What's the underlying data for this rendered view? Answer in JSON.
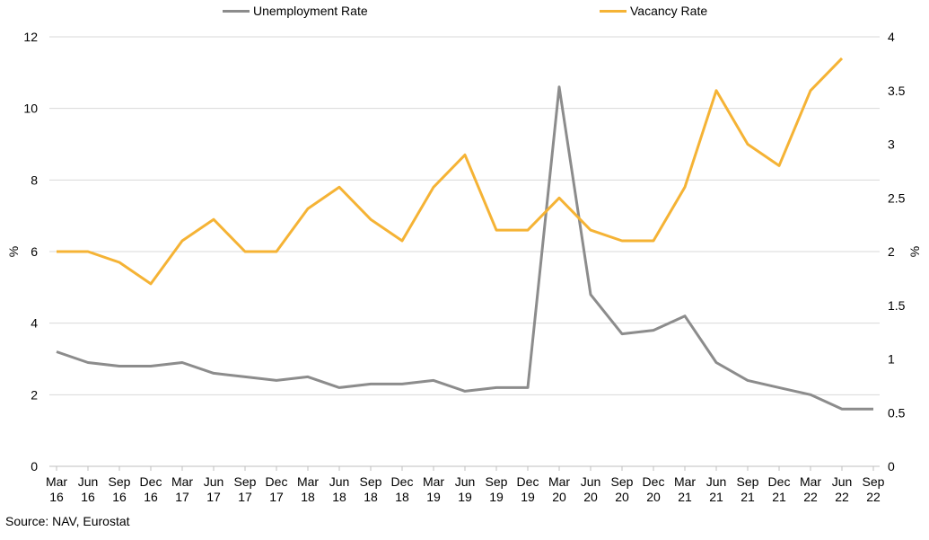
{
  "chart_data": {
    "type": "line",
    "title": "",
    "categories": [
      "Mar 16",
      "Jun 16",
      "Sep 16",
      "Dec 16",
      "Mar 17",
      "Jun 17",
      "Sep 17",
      "Dec 17",
      "Mar 18",
      "Jun 18",
      "Sep 18",
      "Dec 18",
      "Mar 19",
      "Jun 19",
      "Sep 19",
      "Dec 19",
      "Mar 20",
      "Jun 20",
      "Sep 20",
      "Dec 20",
      "Mar 21",
      "Jun 21",
      "Sep 21",
      "Dec 21",
      "Mar 22",
      "Jun 22",
      "Sep 22"
    ],
    "series": [
      {
        "name": "Unemployment Rate",
        "axis": "left",
        "color": "#8c8c8c",
        "values": [
          3.2,
          2.9,
          2.8,
          2.8,
          2.9,
          2.6,
          2.5,
          2.4,
          2.5,
          2.2,
          2.3,
          2.3,
          2.4,
          2.1,
          2.2,
          2.2,
          10.6,
          4.8,
          3.7,
          3.8,
          4.2,
          2.9,
          2.4,
          2.2,
          2.0,
          1.6,
          1.6
        ]
      },
      {
        "name": "Vacancy Rate",
        "axis": "right",
        "color": "#f5b335",
        "values": [
          2.0,
          2.0,
          1.9,
          1.7,
          2.1,
          2.3,
          2.0,
          2.0,
          2.4,
          2.6,
          2.3,
          2.1,
          2.6,
          2.9,
          2.2,
          2.2,
          2.5,
          2.2,
          2.1,
          2.1,
          2.6,
          3.5,
          3.0,
          2.8,
          3.5,
          3.8,
          null
        ]
      }
    ],
    "y_left": {
      "label": "%",
      "ylim": [
        0,
        12
      ],
      "ticks": [
        "0",
        "2",
        "4",
        "6",
        "8",
        "10",
        "12"
      ]
    },
    "y_right": {
      "label": "%",
      "ylim": [
        0,
        4
      ],
      "ticks": [
        "0",
        "0.5",
        "1",
        "1.5",
        "2",
        "2.5",
        "3",
        "3.5",
        "4"
      ]
    },
    "grid": true,
    "legend_position": "top"
  },
  "source": "Source: NAV, Eurostat"
}
